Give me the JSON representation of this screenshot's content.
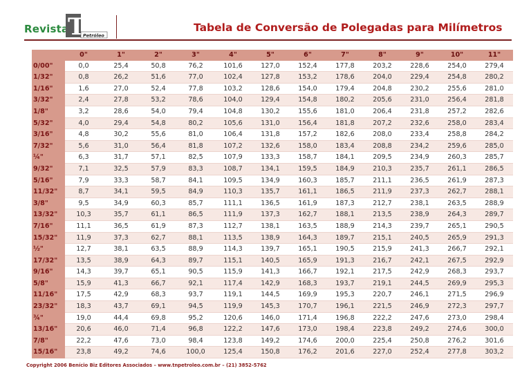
{
  "header": {
    "brand": "Revista",
    "logo_text": "TN",
    "logo_sub": "Petróleo",
    "title": "Tabela de Conversão de Polegadas para Milímetros"
  },
  "colors": {
    "accent": "#b01c1c",
    "header_bg": "#d79a8c",
    "row_alt": "#f7e8e3",
    "brand_green": "#2b8a3e"
  },
  "table": {
    "columns": [
      "0\"",
      "1\"",
      "2\"",
      "3\"",
      "4\"",
      "5\"",
      "6\"",
      "7\"",
      "8\"",
      "9\"",
      "10\"",
      "11\""
    ],
    "rows": [
      {
        "label": "0/00\"",
        "values": [
          "0,0",
          "25,4",
          "50,8",
          "76,2",
          "101,6",
          "127,0",
          "152,4",
          "177,8",
          "203,2",
          "228,6",
          "254,0",
          "279,4"
        ]
      },
      {
        "label": "1/32\"",
        "values": [
          "0,8",
          "26,2",
          "51,6",
          "77,0",
          "102,4",
          "127,8",
          "153,2",
          "178,6",
          "204,0",
          "229,4",
          "254,8",
          "280,2"
        ]
      },
      {
        "label": "1/16\"",
        "values": [
          "1,6",
          "27,0",
          "52,4",
          "77,8",
          "103,2",
          "128,6",
          "154,0",
          "179,4",
          "204,8",
          "230,2",
          "255,6",
          "281,0"
        ]
      },
      {
        "label": "3/32\"",
        "values": [
          "2,4",
          "27,8",
          "53,2",
          "78,6",
          "104,0",
          "129,4",
          "154,8",
          "180,2",
          "205,6",
          "231,0",
          "256,4",
          "281,8"
        ]
      },
      {
        "label": "1/8\"",
        "values": [
          "3,2",
          "28,6",
          "54,0",
          "79,4",
          "104,8",
          "130,2",
          "155,6",
          "181,0",
          "206,4",
          "231,8",
          "257,2",
          "282,6"
        ]
      },
      {
        "label": "5/32\"",
        "values": [
          "4,0",
          "29,4",
          "54,8",
          "80,2",
          "105,6",
          "131,0",
          "156,4",
          "181,8",
          "207,2",
          "232,6",
          "258,0",
          "283,4"
        ]
      },
      {
        "label": "3/16\"",
        "values": [
          "4,8",
          "30,2",
          "55,6",
          "81,0",
          "106,4",
          "131,8",
          "157,2",
          "182,6",
          "208,0",
          "233,4",
          "258,8",
          "284,2"
        ]
      },
      {
        "label": "7/32\"",
        "values": [
          "5,6",
          "31,0",
          "56,4",
          "81,8",
          "107,2",
          "132,6",
          "158,0",
          "183,4",
          "208,8",
          "234,2",
          "259,6",
          "285,0"
        ]
      },
      {
        "label": "¼\"",
        "values": [
          "6,3",
          "31,7",
          "57,1",
          "82,5",
          "107,9",
          "133,3",
          "158,7",
          "184,1",
          "209,5",
          "234,9",
          "260,3",
          "285,7"
        ]
      },
      {
        "label": "9/32\"",
        "values": [
          "7,1",
          "32,5",
          "57,9",
          "83,3",
          "108,7",
          "134,1",
          "159,5",
          "184,9",
          "210,3",
          "235,7",
          "261,1",
          "286,5"
        ]
      },
      {
        "label": "5/16\"",
        "values": [
          "7,9",
          "33,3",
          "58,7",
          "84,1",
          "109,5",
          "134,9",
          "160,3",
          "185,7",
          "211,1",
          "236,5",
          "261,9",
          "287,3"
        ]
      },
      {
        "label": "11/32\"",
        "values": [
          "8,7",
          "34,1",
          "59,5",
          "84,9",
          "110,3",
          "135,7",
          "161,1",
          "186,5",
          "211,9",
          "237,3",
          "262,7",
          "288,1"
        ]
      },
      {
        "label": "3/8\"",
        "values": [
          "9,5",
          "34,9",
          "60,3",
          "85,7",
          "111,1",
          "136,5",
          "161,9",
          "187,3",
          "212,7",
          "238,1",
          "263,5",
          "288,9"
        ]
      },
      {
        "label": "13/32\"",
        "values": [
          "10,3",
          "35,7",
          "61,1",
          "86,5",
          "111,9",
          "137,3",
          "162,7",
          "188,1",
          "213,5",
          "238,9",
          "264,3",
          "289,7"
        ]
      },
      {
        "label": "7/16\"",
        "values": [
          "11,1",
          "36,5",
          "61,9",
          "87,3",
          "112,7",
          "138,1",
          "163,5",
          "188,9",
          "214,3",
          "239,7",
          "265,1",
          "290,5"
        ]
      },
      {
        "label": "15/32\"",
        "values": [
          "11,9",
          "37,3",
          "62,7",
          "88,1",
          "113,5",
          "138,9",
          "164,3",
          "189,7",
          "215,1",
          "240,5",
          "265,9",
          "291,3"
        ]
      },
      {
        "label": "½\"",
        "values": [
          "12,7",
          "38,1",
          "63,5",
          "88,9",
          "114,3",
          "139,7",
          "165,1",
          "190,5",
          "215,9",
          "241,3",
          "266,7",
          "292,1"
        ]
      },
      {
        "label": "17/32\"",
        "values": [
          "13,5",
          "38,9",
          "64,3",
          "89,7",
          "115,1",
          "140,5",
          "165,9",
          "191,3",
          "216,7",
          "242,1",
          "267,5",
          "292,9"
        ]
      },
      {
        "label": "9/16\"",
        "values": [
          "14,3",
          "39,7",
          "65,1",
          "90,5",
          "115,9",
          "141,3",
          "166,7",
          "192,1",
          "217,5",
          "242,9",
          "268,3",
          "293,7"
        ]
      },
      {
        "label": "5/8\"",
        "values": [
          "15,9",
          "41,3",
          "66,7",
          "92,1",
          "117,4",
          "142,9",
          "168,3",
          "193,7",
          "219,1",
          "244,5",
          "269,9",
          "295,3"
        ]
      },
      {
        "label": "11/16\"",
        "values": [
          "17,5",
          "42,9",
          "68,3",
          "93,7",
          "119,1",
          "144,5",
          "169,9",
          "195,3",
          "220,7",
          "246,1",
          "271,5",
          "296,9"
        ]
      },
      {
        "label": "23/32\"",
        "values": [
          "18,3",
          "43,7",
          "69,1",
          "94,5",
          "119,9",
          "145,3",
          "170,7",
          "196,1",
          "221,5",
          "246,9",
          "272,3",
          "297,7"
        ]
      },
      {
        "label": "¾\"",
        "values": [
          "19,0",
          "44,4",
          "69,8",
          "95,2",
          "120,6",
          "146,0",
          "171,4",
          "196,8",
          "222,2",
          "247,6",
          "273,0",
          "298,4"
        ]
      },
      {
        "label": "13/16\"",
        "values": [
          "20,6",
          "46,0",
          "71,4",
          "96,8",
          "122,2",
          "147,6",
          "173,0",
          "198,4",
          "223,8",
          "249,2",
          "274,6",
          "300,0"
        ]
      },
      {
        "label": "7/8\"",
        "values": [
          "22,2",
          "47,6",
          "73,0",
          "98,4",
          "123,8",
          "149,2",
          "174,6",
          "200,0",
          "225,4",
          "250,8",
          "276,2",
          "301,6"
        ]
      },
      {
        "label": "15/16\"",
        "values": [
          "23,8",
          "49,2",
          "74,6",
          "100,0",
          "125,4",
          "150,8",
          "176,2",
          "201,6",
          "227,0",
          "252,4",
          "277,8",
          "303,2"
        ]
      }
    ]
  },
  "footer": {
    "text": "Copyright 2006 Benício Biz Editores Associados – www.tnpetroleo.com.br – (21) 3852-5762"
  }
}
